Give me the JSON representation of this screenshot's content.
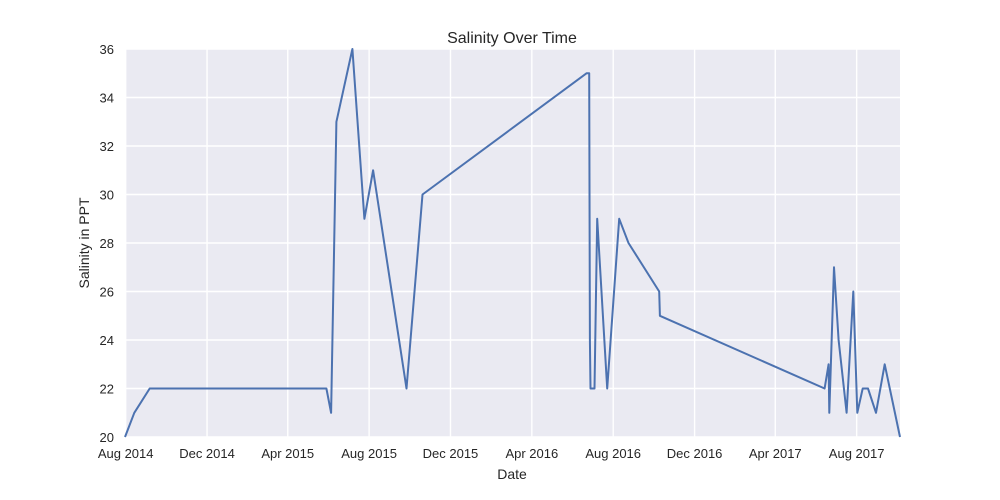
{
  "chart_data": {
    "type": "line",
    "title": "Salinity Over Time",
    "xlabel": "Date",
    "ylabel": "Salinity in PPT",
    "ylim": [
      20,
      36
    ],
    "xlim": [
      "2014-07-31",
      "2017-10-05"
    ],
    "yticks": [
      20,
      22,
      24,
      26,
      28,
      30,
      32,
      34,
      36
    ],
    "xticks": [
      {
        "date": "2014-08-01",
        "label": "Aug 2014"
      },
      {
        "date": "2014-12-01",
        "label": "Dec 2014"
      },
      {
        "date": "2015-04-01",
        "label": "Apr 2015"
      },
      {
        "date": "2015-08-01",
        "label": "Aug 2015"
      },
      {
        "date": "2015-12-01",
        "label": "Dec 2015"
      },
      {
        "date": "2016-04-01",
        "label": "Apr 2016"
      },
      {
        "date": "2016-08-01",
        "label": "Aug 2016"
      },
      {
        "date": "2016-12-01",
        "label": "Dec 2016"
      },
      {
        "date": "2017-04-01",
        "label": "Apr 2017"
      },
      {
        "date": "2017-08-01",
        "label": "Aug 2017"
      }
    ],
    "grid": true,
    "colors": {
      "line": "#4c72b0",
      "background": "#eaeaf2",
      "grid": "#ffffff"
    },
    "series": [
      {
        "x": [
          "2014-07-31",
          "2014-08-14",
          "2014-09-06",
          "2015-05-29",
          "2015-06-05",
          "2015-06-13",
          "2015-07-07",
          "2015-07-25",
          "2015-08-07",
          "2015-09-26",
          "2015-10-20",
          "2016-06-22",
          "2016-06-26",
          "2016-06-27",
          "2016-06-28",
          "2016-07-04",
          "2016-07-08",
          "2016-07-23",
          "2016-08-10",
          "2016-08-24",
          "2016-10-09",
          "2016-10-10",
          "2017-06-14",
          "2017-06-20",
          "2017-06-21",
          "2017-06-28",
          "2017-07-05",
          "2017-07-17",
          "2017-07-27",
          "2017-08-02",
          "2017-08-10",
          "2017-08-18",
          "2017-08-30",
          "2017-09-12",
          "2017-10-05"
        ],
        "y": [
          20,
          21,
          22,
          22,
          21,
          33,
          36,
          29,
          31,
          22,
          30,
          35,
          35,
          24,
          22,
          22,
          29,
          22,
          29,
          28,
          26,
          25,
          22,
          23,
          21,
          27,
          24,
          21,
          26,
          21,
          22,
          22,
          21,
          23,
          20
        ]
      }
    ]
  }
}
